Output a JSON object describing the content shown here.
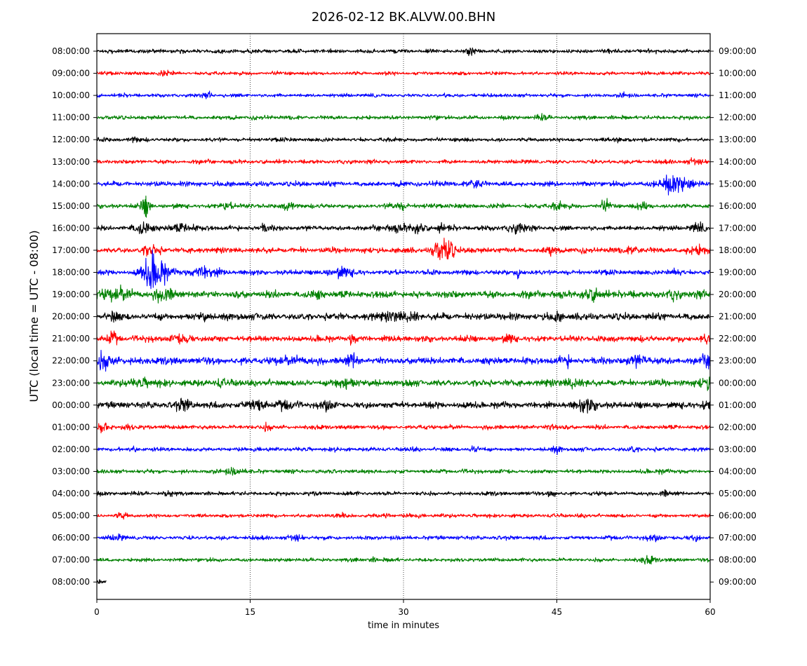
{
  "chart_data": {
    "type": "line",
    "title": "2026-02-12 BK.ALVW.00.BHN",
    "xlabel": "time in minutes",
    "ylabel": "UTC (local time = UTC - 08:00)",
    "xlim": [
      0,
      60
    ],
    "x_ticks": [
      0,
      15,
      30,
      45,
      60
    ],
    "vertical_gridlines_at": [
      15,
      30,
      45
    ],
    "grid_style": "dotted",
    "y_tick_labels_left": [
      "08:00:00",
      "09:00:00",
      "10:00:00",
      "11:00:00",
      "12:00:00",
      "13:00:00",
      "14:00:00",
      "15:00:00",
      "16:00:00",
      "17:00:00",
      "18:00:00",
      "19:00:00",
      "20:00:00",
      "21:00:00",
      "22:00:00",
      "23:00:00",
      "00:00:00",
      "01:00:00",
      "02:00:00",
      "03:00:00",
      "04:00:00",
      "05:00:00",
      "06:00:00",
      "07:00:00",
      "08:00:00"
    ],
    "y_tick_labels_right": [
      "09:00:00",
      "10:00:00",
      "11:00:00",
      "12:00:00",
      "13:00:00",
      "14:00:00",
      "15:00:00",
      "16:00:00",
      "17:00:00",
      "18:00:00",
      "19:00:00",
      "20:00:00",
      "21:00:00",
      "22:00:00",
      "23:00:00",
      "00:00:00",
      "01:00:00",
      "02:00:00",
      "03:00:00",
      "04:00:00",
      "05:00:00",
      "06:00:00",
      "07:00:00",
      "08:00:00",
      "09:00:00"
    ],
    "trace_color_cycle": [
      "#000000",
      "#ff0000",
      "#0000ff",
      "#008000"
    ],
    "traces": [
      {
        "start": "08:00:00",
        "duration_min": 60,
        "noise": 0.28,
        "events": [
          {
            "t": 36.5,
            "a": 0.35,
            "d": 0.3
          },
          {
            "t": 50.5,
            "a": 0.3,
            "d": 0.5
          }
        ]
      },
      {
        "start": "09:00:00",
        "duration_min": 60,
        "noise": 0.25,
        "events": [
          {
            "t": 6.5,
            "a": 0.3,
            "d": 0.6
          }
        ]
      },
      {
        "start": "10:00:00",
        "duration_min": 60,
        "noise": 0.25,
        "events": [
          {
            "t": 11.0,
            "a": 0.3,
            "d": 0.4
          },
          {
            "t": 51.5,
            "a": 0.3,
            "d": 0.3
          }
        ]
      },
      {
        "start": "11:00:00",
        "duration_min": 60,
        "noise": 0.28,
        "events": [
          {
            "t": 43.5,
            "a": 0.3,
            "d": 0.5
          }
        ]
      },
      {
        "start": "12:00:00",
        "duration_min": 60,
        "noise": 0.28,
        "events": [
          {
            "t": 3.5,
            "a": 0.3,
            "d": 0.4
          },
          {
            "t": 51.0,
            "a": 0.3,
            "d": 0.4
          }
        ]
      },
      {
        "start": "13:00:00",
        "duration_min": 60,
        "noise": 0.28,
        "events": [
          {
            "t": 58.5,
            "a": 0.35,
            "d": 0.8
          }
        ]
      },
      {
        "start": "14:00:00",
        "duration_min": 60,
        "noise": 0.35,
        "events": [
          {
            "t": 37.0,
            "a": 0.55,
            "d": 0.8
          },
          {
            "t": 56.5,
            "a": 1.3,
            "d": 1.5
          }
        ]
      },
      {
        "start": "15:00:00",
        "duration_min": 60,
        "noise": 0.32,
        "events": [
          {
            "t": 4.8,
            "a": 1.5,
            "d": 0.4
          },
          {
            "t": 12.8,
            "a": 0.5,
            "d": 0.6
          },
          {
            "t": 18.8,
            "a": 0.5,
            "d": 0.6
          },
          {
            "t": 29.8,
            "a": 0.5,
            "d": 0.8
          },
          {
            "t": 45.0,
            "a": 0.6,
            "d": 0.5
          },
          {
            "t": 49.8,
            "a": 0.6,
            "d": 0.5
          },
          {
            "t": 53.5,
            "a": 0.5,
            "d": 0.6
          }
        ]
      },
      {
        "start": "16:00:00",
        "duration_min": 60,
        "noise": 0.35,
        "events": [
          {
            "t": 4.6,
            "a": 1.0,
            "d": 0.8
          },
          {
            "t": 8.5,
            "a": 0.6,
            "d": 1.0
          },
          {
            "t": 16.3,
            "a": 0.5,
            "d": 0.6
          },
          {
            "t": 29.5,
            "a": 0.5,
            "d": 1.0
          },
          {
            "t": 31.5,
            "a": 0.5,
            "d": 0.7
          },
          {
            "t": 33.5,
            "a": 0.8,
            "d": 0.3
          },
          {
            "t": 41.0,
            "a": 0.5,
            "d": 1.0
          },
          {
            "t": 58.8,
            "a": 0.5,
            "d": 0.6
          }
        ]
      },
      {
        "start": "17:00:00",
        "duration_min": 60,
        "noise": 0.38,
        "events": [
          {
            "t": 5.2,
            "a": 0.7,
            "d": 0.8
          },
          {
            "t": 34.0,
            "a": 1.8,
            "d": 1.0
          },
          {
            "t": 44.5,
            "a": 0.6,
            "d": 0.5
          },
          {
            "t": 52.5,
            "a": 0.6,
            "d": 0.6
          },
          {
            "t": 59.0,
            "a": 0.6,
            "d": 1.0
          }
        ]
      },
      {
        "start": "18:00:00",
        "duration_min": 60,
        "noise": 0.35,
        "events": [
          {
            "t": 5.3,
            "a": 1.8,
            "d": 1.0
          },
          {
            "t": 6.2,
            "a": 1.4,
            "d": 1.0
          },
          {
            "t": 10.5,
            "a": 0.9,
            "d": 1.2
          },
          {
            "t": 24.0,
            "a": 0.7,
            "d": 1.0
          },
          {
            "t": 41.3,
            "a": 0.9,
            "d": 0.3
          },
          {
            "t": 56.8,
            "a": 0.5,
            "d": 0.5
          }
        ]
      },
      {
        "start": "19:00:00",
        "duration_min": 60,
        "noise": 0.5,
        "events": [
          {
            "t": 2.0,
            "a": 0.7,
            "d": 1.5
          },
          {
            "t": 6.5,
            "a": 0.7,
            "d": 1.0
          },
          {
            "t": 21.5,
            "a": 0.5,
            "d": 0.5
          },
          {
            "t": 48.5,
            "a": 0.6,
            "d": 1.0
          },
          {
            "t": 56.5,
            "a": 0.6,
            "d": 0.5
          }
        ]
      },
      {
        "start": "20:00:00",
        "duration_min": 60,
        "noise": 0.48,
        "events": [
          {
            "t": 1.5,
            "a": 0.6,
            "d": 0.5
          },
          {
            "t": 10.5,
            "a": 0.5,
            "d": 0.5
          },
          {
            "t": 29.0,
            "a": 0.6,
            "d": 1.0
          },
          {
            "t": 31.0,
            "a": 0.6,
            "d": 0.5
          },
          {
            "t": 45.0,
            "a": 0.5,
            "d": 0.5
          }
        ]
      },
      {
        "start": "21:00:00",
        "duration_min": 60,
        "noise": 0.42,
        "events": [
          {
            "t": 1.5,
            "a": 0.7,
            "d": 0.5
          },
          {
            "t": 8.5,
            "a": 0.5,
            "d": 1.0
          },
          {
            "t": 25.0,
            "a": 0.8,
            "d": 0.3
          },
          {
            "t": 40.5,
            "a": 0.5,
            "d": 0.5
          },
          {
            "t": 59.5,
            "a": 0.6,
            "d": 0.5
          }
        ]
      },
      {
        "start": "22:00:00",
        "duration_min": 60,
        "noise": 0.5,
        "events": [
          {
            "t": 0.8,
            "a": 0.9,
            "d": 1.2
          },
          {
            "t": 19.5,
            "a": 0.5,
            "d": 1.0
          },
          {
            "t": 25.0,
            "a": 0.8,
            "d": 0.5
          },
          {
            "t": 46.0,
            "a": 0.6,
            "d": 0.5
          },
          {
            "t": 53.0,
            "a": 0.6,
            "d": 1.0
          },
          {
            "t": 59.8,
            "a": 0.6,
            "d": 0.5
          }
        ]
      },
      {
        "start": "23:00:00",
        "duration_min": 60,
        "noise": 0.45,
        "events": [
          {
            "t": 4.5,
            "a": 0.5,
            "d": 1.0
          },
          {
            "t": 12.0,
            "a": 0.5,
            "d": 0.5
          },
          {
            "t": 24.5,
            "a": 0.8,
            "d": 1.0
          },
          {
            "t": 46.5,
            "a": 0.5,
            "d": 1.0
          },
          {
            "t": 59.8,
            "a": 0.8,
            "d": 0.8
          }
        ]
      },
      {
        "start": "00:00:00",
        "duration_min": 60,
        "noise": 0.45,
        "events": [
          {
            "t": 8.5,
            "a": 0.7,
            "d": 0.8
          },
          {
            "t": 15.5,
            "a": 0.6,
            "d": 1.2
          },
          {
            "t": 18.5,
            "a": 0.5,
            "d": 0.7
          },
          {
            "t": 22.5,
            "a": 0.5,
            "d": 0.5
          },
          {
            "t": 48.0,
            "a": 0.8,
            "d": 1.0
          },
          {
            "t": 59.5,
            "a": 0.5,
            "d": 0.6
          }
        ]
      },
      {
        "start": "01:00:00",
        "duration_min": 60,
        "noise": 0.3,
        "events": [
          {
            "t": 0.5,
            "a": 0.7,
            "d": 0.6
          },
          {
            "t": 3.0,
            "a": 0.3,
            "d": 0.5
          },
          {
            "t": 16.5,
            "a": 0.4,
            "d": 0.5
          },
          {
            "t": 44.5,
            "a": 0.5,
            "d": 0.5
          }
        ]
      },
      {
        "start": "02:00:00",
        "duration_min": 60,
        "noise": 0.28,
        "events": [
          {
            "t": 3.8,
            "a": 0.3,
            "d": 0.5
          },
          {
            "t": 37.0,
            "a": 0.45,
            "d": 0.5
          },
          {
            "t": 45.0,
            "a": 0.4,
            "d": 0.5
          },
          {
            "t": 52.5,
            "a": 0.4,
            "d": 0.5
          }
        ]
      },
      {
        "start": "03:00:00",
        "duration_min": 60,
        "noise": 0.28,
        "events": [
          {
            "t": 13.5,
            "a": 0.45,
            "d": 0.8
          },
          {
            "t": 55.5,
            "a": 0.3,
            "d": 0.5
          }
        ]
      },
      {
        "start": "04:00:00",
        "duration_min": 60,
        "noise": 0.28,
        "events": [
          {
            "t": 7.0,
            "a": 0.35,
            "d": 0.4
          },
          {
            "t": 44.5,
            "a": 0.45,
            "d": 0.4
          },
          {
            "t": 55.5,
            "a": 0.35,
            "d": 0.4
          }
        ]
      },
      {
        "start": "05:00:00",
        "duration_min": 60,
        "noise": 0.26,
        "events": [
          {
            "t": 2.5,
            "a": 0.35,
            "d": 0.5
          },
          {
            "t": 24.0,
            "a": 0.3,
            "d": 0.5
          },
          {
            "t": 28.5,
            "a": 0.3,
            "d": 0.5
          }
        ]
      },
      {
        "start": "06:00:00",
        "duration_min": 60,
        "noise": 0.28,
        "events": [
          {
            "t": 2.0,
            "a": 0.35,
            "d": 0.6
          },
          {
            "t": 19.5,
            "a": 0.45,
            "d": 0.6
          },
          {
            "t": 54.5,
            "a": 0.3,
            "d": 0.6
          },
          {
            "t": 58.5,
            "a": 0.35,
            "d": 0.6
          }
        ]
      },
      {
        "start": "07:00:00",
        "duration_min": 60,
        "noise": 0.26,
        "events": [
          {
            "t": 27.0,
            "a": 0.3,
            "d": 0.5
          },
          {
            "t": 54.0,
            "a": 0.5,
            "d": 0.7
          }
        ]
      },
      {
        "start": "08:00:00",
        "duration_min": 0.9,
        "noise": 0.3,
        "events": []
      }
    ]
  }
}
